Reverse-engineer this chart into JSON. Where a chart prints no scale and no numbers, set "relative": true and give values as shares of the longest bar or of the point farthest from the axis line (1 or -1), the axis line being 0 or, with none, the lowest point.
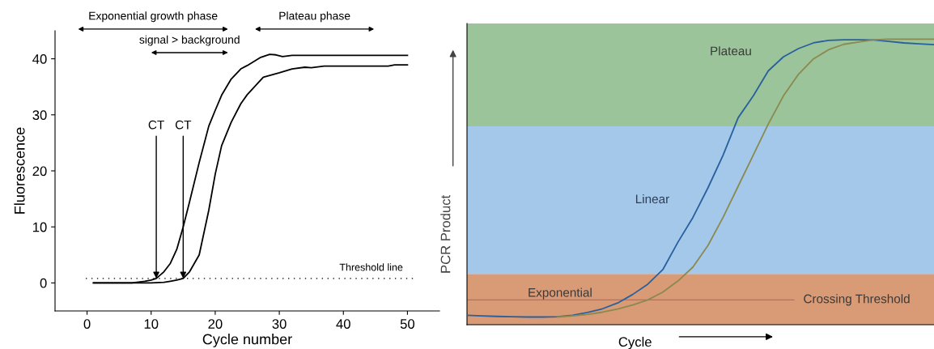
{
  "chart_data": [
    {
      "type": "line",
      "xlabel": "Cycle number",
      "ylabel": "Fluorescence",
      "xlim": [
        -5,
        55
      ],
      "ylim": [
        -5,
        45
      ],
      "xticks": [
        0,
        10,
        20,
        30,
        40,
        50
      ],
      "yticks": [
        0,
        10,
        20,
        30,
        40
      ],
      "grid": false,
      "legend": false,
      "marker": "none",
      "line_style": "solid",
      "series": [
        {
          "color": "#000000",
          "x": [
            1,
            4,
            7,
            9,
            10,
            10.8,
            12,
            13,
            14,
            15,
            16,
            17.5,
            19,
            20,
            21,
            22.5,
            24,
            25,
            27,
            28.5,
            29.5,
            30.5,
            32,
            35,
            40,
            45,
            50
          ],
          "values": [
            0,
            0,
            0,
            0.3,
            0.5,
            0.8,
            2,
            3.5,
            6,
            10,
            14.5,
            21.5,
            28,
            30.8,
            33.5,
            36.4,
            38.2,
            38.8,
            40.2,
            40.8,
            40.7,
            40.4,
            40.6,
            40.6,
            40.6,
            40.6,
            40.6
          ]
        },
        {
          "color": "#000000",
          "x": [
            1,
            5,
            10,
            12,
            13,
            14,
            15,
            16,
            17.5,
            19,
            20,
            21,
            22.5,
            24,
            25,
            27.5,
            30,
            32,
            34,
            35,
            37,
            40,
            45,
            47,
            48,
            50
          ],
          "values": [
            0,
            0,
            0,
            0.1,
            0.3,
            0.5,
            0.8,
            2,
            5,
            13,
            19.4,
            24.5,
            28.7,
            32,
            33.6,
            36.7,
            37.5,
            38.2,
            38.5,
            38.4,
            38.7,
            38.7,
            38.7,
            38.7,
            38.9,
            38.9
          ]
        }
      ],
      "ref_lines": [
        {
          "axis": "y",
          "value": 0.8,
          "label": "Threshold line",
          "line_style": "dotted",
          "color": "#000000"
        }
      ],
      "annotations": [
        "Exponential growth phase",
        "Plateau phase",
        "signal > background",
        {
          "text": "CT",
          "x": 10.8,
          "y": 0.8
        },
        {
          "text": "CT",
          "x": 15,
          "y": 0.8
        }
      ]
    },
    {
      "type": "line",
      "relative": true,
      "xlabel": "Cycle",
      "ylabel": "PCR Product",
      "grid": false,
      "legend": false,
      "marker": "none",
      "line_style": "solid",
      "categories": [
        null,
        null,
        null,
        null,
        null,
        null,
        null,
        null,
        null,
        null,
        null,
        null,
        null,
        null,
        null,
        null,
        null,
        null,
        null,
        null,
        null,
        null,
        null,
        null,
        null,
        null,
        null,
        null,
        null,
        null,
        null,
        null
      ],
      "series": [
        {
          "color": "#2a5f9e",
          "values": [
            0.033,
            0.031,
            0.029,
            0.028,
            0.027,
            0.027,
            0.028,
            0.033,
            0.043,
            0.056,
            0.076,
            0.106,
            0.142,
            0.193,
            0.289,
            0.376,
            0.48,
            0.594,
            0.725,
            0.801,
            0.889,
            0.938,
            0.967,
            0.987,
            0.996,
            0.998,
            0.998,
            0.997,
            0.992,
            0.987,
            0.984,
            0.981
          ]
        },
        {
          "color": "#8a8a50",
          "values": [
            null,
            null,
            null,
            null,
            null,
            null,
            0.027,
            0.031,
            0.036,
            0.044,
            0.055,
            0.069,
            0.087,
            0.114,
            0.153,
            0.202,
            0.278,
            0.376,
            0.485,
            0.594,
            0.703,
            0.801,
            0.877,
            0.931,
            0.963,
            0.982,
            0.99,
            0.998,
            1.0,
            1.0,
            1.0,
            1.0
          ]
        }
      ],
      "bands": [
        {
          "axis": "y",
          "from": 0,
          "to": 0.178,
          "label": "Exponential",
          "color": "#d99a76"
        },
        {
          "axis": "y",
          "from": 0.178,
          "to": 0.695,
          "label": "Linear",
          "color": "#a3c8ea"
        },
        {
          "axis": "y",
          "from": 0.695,
          "to": 1.055,
          "label": "Plateau",
          "color": "#9bc49a"
        }
      ],
      "ref_lines": [
        {
          "axis": "y",
          "value": 0.087,
          "label": "Crossing Threshold",
          "color": "#b0735a",
          "line_style": "solid"
        }
      ]
    }
  ]
}
